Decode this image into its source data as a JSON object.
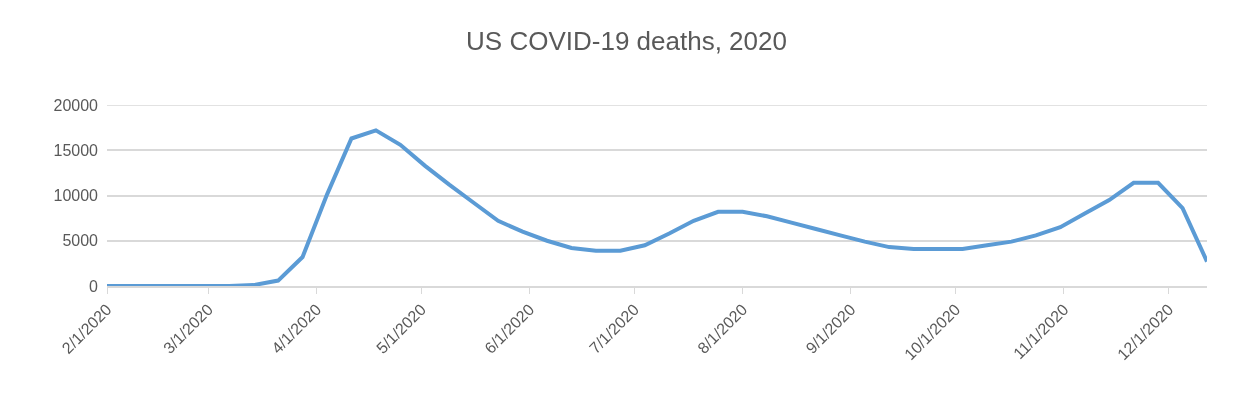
{
  "chart_data": {
    "type": "line",
    "title": "US COVID-19 deaths, 2020",
    "x": [
      "2020-02-01",
      "2020-02-08",
      "2020-02-15",
      "2020-02-22",
      "2020-02-29",
      "2020-03-07",
      "2020-03-14",
      "2020-03-21",
      "2020-03-28",
      "2020-04-04",
      "2020-04-11",
      "2020-04-18",
      "2020-04-25",
      "2020-05-02",
      "2020-05-09",
      "2020-05-16",
      "2020-05-23",
      "2020-05-30",
      "2020-06-06",
      "2020-06-13",
      "2020-06-20",
      "2020-06-27",
      "2020-07-04",
      "2020-07-11",
      "2020-07-18",
      "2020-07-25",
      "2020-08-01",
      "2020-08-08",
      "2020-08-15",
      "2020-08-22",
      "2020-08-29",
      "2020-09-05",
      "2020-09-12",
      "2020-09-19",
      "2020-09-26",
      "2020-10-03",
      "2020-10-10",
      "2020-10-17",
      "2020-10-24",
      "2020-10-31",
      "2020-11-07",
      "2020-11-14",
      "2020-11-21",
      "2020-11-28",
      "2020-12-05",
      "2020-12-12"
    ],
    "series": [
      {
        "color": "#5b9bd5",
        "values": [
          0,
          0,
          0,
          0,
          0,
          0,
          100,
          600,
          3200,
          10100,
          16300,
          17200,
          15600,
          13300,
          11200,
          9200,
          7200,
          6000,
          5000,
          4200,
          3900,
          3900,
          4500,
          5800,
          7200,
          8200,
          8200,
          7700,
          7000,
          6300,
          5600,
          4900,
          4300,
          4100,
          4100,
          4100,
          4500,
          4900,
          5600,
          6500,
          8000,
          9500,
          11400,
          11400,
          8600,
          2700
        ]
      }
    ],
    "xlim": [
      "2020-02-01",
      "2020-12-12"
    ],
    "xticks": [
      {
        "value": "2020-02-01",
        "label": "2/1/2020"
      },
      {
        "value": "2020-03-01",
        "label": "3/1/2020"
      },
      {
        "value": "2020-04-01",
        "label": "4/1/2020"
      },
      {
        "value": "2020-05-01",
        "label": "5/1/2020"
      },
      {
        "value": "2020-06-01",
        "label": "6/1/2020"
      },
      {
        "value": "2020-07-01",
        "label": "7/1/2020"
      },
      {
        "value": "2020-08-01",
        "label": "8/1/2020"
      },
      {
        "value": "2020-09-01",
        "label": "9/1/2020"
      },
      {
        "value": "2020-10-01",
        "label": "10/1/2020"
      },
      {
        "value": "2020-11-01",
        "label": "11/1/2020"
      },
      {
        "value": "2020-12-01",
        "label": "12/1/2020"
      }
    ],
    "ylim": [
      0,
      20000
    ],
    "yticks": [
      0,
      5000,
      10000,
      15000,
      20000
    ],
    "grid": "y",
    "marker": "none",
    "line_style": "solid"
  }
}
